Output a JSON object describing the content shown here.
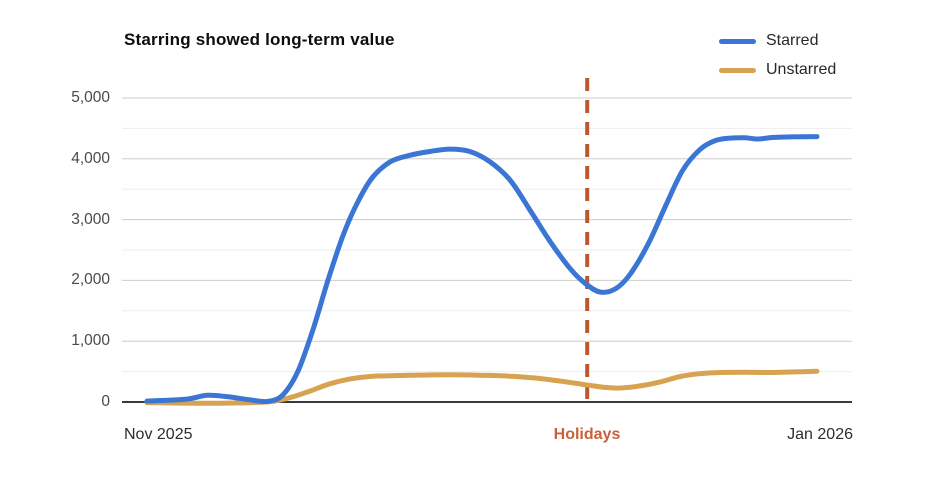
{
  "title": "Starring showed long-term value",
  "legend": [
    {
      "label": "Starred",
      "color": "#3b76d5"
    },
    {
      "label": "Unstarred",
      "color": "#d7a351"
    }
  ],
  "x_axis": {
    "left_label": "Nov 2025",
    "right_label": "Jan 2026"
  },
  "chart_data": {
    "type": "line",
    "title": "Starring showed long-term value",
    "xlabel": "",
    "ylabel": "",
    "x_range_labels": [
      "Nov 2025",
      "Jan 2026"
    ],
    "ylim": [
      0,
      5000
    ],
    "yticks": [
      0,
      1000,
      2000,
      3000,
      4000,
      5000
    ],
    "ytick_labels": [
      "0",
      "1,000",
      "2,000",
      "3,000",
      "4,000",
      "5,000"
    ],
    "minor_gridline_step": 500,
    "grid": "on",
    "legend_position": "top-right",
    "annotation": {
      "label": "Holidays",
      "style": "dashed-vertical-line",
      "x_frac": 0.657,
      "text_color": "#c8603a",
      "line_color": "#c0562e"
    },
    "series": [
      {
        "name": "Starred",
        "color": "#3b76d5",
        "points": [
          [
            0.0,
            15
          ],
          [
            0.057,
            45
          ],
          [
            0.09,
            110
          ],
          [
            0.121,
            85
          ],
          [
            0.154,
            35
          ],
          [
            0.181,
            10
          ],
          [
            0.203,
            120
          ],
          [
            0.225,
            500
          ],
          [
            0.248,
            1200
          ],
          [
            0.27,
            2000
          ],
          [
            0.293,
            2750
          ],
          [
            0.315,
            3300
          ],
          [
            0.337,
            3700
          ],
          [
            0.363,
            3950
          ],
          [
            0.393,
            4060
          ],
          [
            0.422,
            4120
          ],
          [
            0.452,
            4160
          ],
          [
            0.482,
            4120
          ],
          [
            0.512,
            3950
          ],
          [
            0.542,
            3650
          ],
          [
            0.572,
            3150
          ],
          [
            0.601,
            2650
          ],
          [
            0.631,
            2200
          ],
          [
            0.654,
            1950
          ],
          [
            0.676,
            1810
          ],
          [
            0.699,
            1860
          ],
          [
            0.721,
            2100
          ],
          [
            0.748,
            2600
          ],
          [
            0.773,
            3200
          ],
          [
            0.799,
            3800
          ],
          [
            0.825,
            4150
          ],
          [
            0.848,
            4300
          ],
          [
            0.87,
            4340
          ],
          [
            0.893,
            4345
          ],
          [
            0.912,
            4325
          ],
          [
            0.933,
            4350
          ],
          [
            0.96,
            4360
          ],
          [
            1.0,
            4365
          ]
        ]
      },
      {
        "name": "Unstarred",
        "color": "#d7a351",
        "points": [
          [
            0.0,
            -10
          ],
          [
            0.079,
            -20
          ],
          [
            0.139,
            -15
          ],
          [
            0.184,
            5
          ],
          [
            0.213,
            70
          ],
          [
            0.243,
            180
          ],
          [
            0.273,
            300
          ],
          [
            0.303,
            380
          ],
          [
            0.333,
            420
          ],
          [
            0.37,
            435
          ],
          [
            0.407,
            442
          ],
          [
            0.452,
            447
          ],
          [
            0.497,
            440
          ],
          [
            0.542,
            425
          ],
          [
            0.579,
            395
          ],
          [
            0.616,
            345
          ],
          [
            0.654,
            285
          ],
          [
            0.684,
            240
          ],
          [
            0.706,
            230
          ],
          [
            0.736,
            265
          ],
          [
            0.766,
            330
          ],
          [
            0.796,
            420
          ],
          [
            0.825,
            465
          ],
          [
            0.855,
            485
          ],
          [
            0.893,
            490
          ],
          [
            0.93,
            485
          ],
          [
            0.967,
            495
          ],
          [
            1.0,
            505
          ]
        ]
      }
    ]
  }
}
